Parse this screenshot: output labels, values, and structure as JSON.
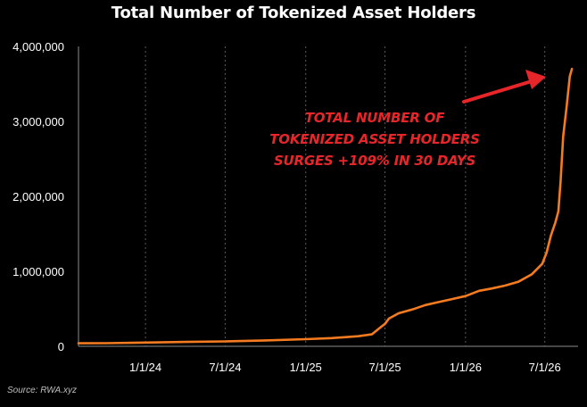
{
  "chart_data": {
    "type": "line",
    "title": "Total Number of Tokenized Asset Holders",
    "xlabel": "",
    "ylabel": "",
    "ylim": [
      0,
      4000000
    ],
    "yticks": [
      0,
      1000000,
      2000000,
      3000000,
      4000000
    ],
    "ytick_labels": [
      "0",
      "1,000,000",
      "2,000,000",
      "3,000,000",
      "4,000,000"
    ],
    "xlim": [
      "2023-08-01",
      "2026-09-15"
    ],
    "xticks": [
      "2024-01-01",
      "2024-07-01",
      "2025-01-01",
      "2025-07-01",
      "2026-01-01",
      "2026-07-01"
    ],
    "xtick_labels": [
      "1/1/24",
      "7/1/24",
      "1/1/25",
      "7/1/25",
      "1/1/26",
      "7/1/26"
    ],
    "grid": {
      "horizontal": false,
      "vertical": true,
      "style": "dashed"
    },
    "legend": "none",
    "series": [
      {
        "color": "#f47b20",
        "points": [
          [
            "2023-08-01",
            40000
          ],
          [
            "2023-10-01",
            42000
          ],
          [
            "2023-12-01",
            46000
          ],
          [
            "2024-02-01",
            52000
          ],
          [
            "2024-04-01",
            58000
          ],
          [
            "2024-07-01",
            65000
          ],
          [
            "2024-10-01",
            78000
          ],
          [
            "2025-01-01",
            95000
          ],
          [
            "2025-03-01",
            110000
          ],
          [
            "2025-05-01",
            135000
          ],
          [
            "2025-06-01",
            160000
          ],
          [
            "2025-06-20",
            250000
          ],
          [
            "2025-07-01",
            300000
          ],
          [
            "2025-07-10",
            370000
          ],
          [
            "2025-08-01",
            440000
          ],
          [
            "2025-09-01",
            490000
          ],
          [
            "2025-10-01",
            550000
          ],
          [
            "2025-11-01",
            590000
          ],
          [
            "2025-12-01",
            630000
          ],
          [
            "2026-01-01",
            670000
          ],
          [
            "2026-02-01",
            740000
          ],
          [
            "2026-03-01",
            770000
          ],
          [
            "2026-04-01",
            810000
          ],
          [
            "2026-05-01",
            860000
          ],
          [
            "2026-06-01",
            960000
          ],
          [
            "2026-06-25",
            1100000
          ],
          [
            "2026-07-05",
            1250000
          ],
          [
            "2026-07-15",
            1480000
          ],
          [
            "2026-07-25",
            1650000
          ],
          [
            "2026-08-01",
            1800000
          ],
          [
            "2026-08-06",
            2200000
          ],
          [
            "2026-08-12",
            2800000
          ],
          [
            "2026-08-20",
            3200000
          ],
          [
            "2026-08-27",
            3600000
          ],
          [
            "2026-09-01",
            3700000
          ]
        ]
      }
    ]
  },
  "annotation": {
    "lines": [
      "TOTAL NUMBER OF",
      "TOKENIZED ASSET HOLDERS",
      "SURGES +109% IN 30 DAYS"
    ],
    "color": "#e8262a"
  },
  "source": "Source: RWA.xyz"
}
